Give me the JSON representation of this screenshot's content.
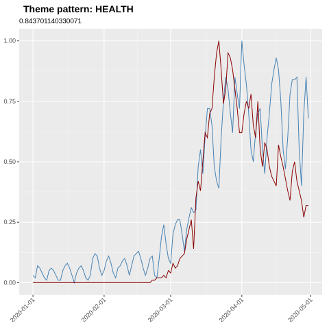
{
  "chart_data": {
    "type": "line",
    "title": "Theme pattern: HEALTH",
    "subtitle": "0.843701140330071",
    "x": [
      "2020-01-01",
      "2020-01-02",
      "2020-01-03",
      "2020-01-04",
      "2020-01-05",
      "2020-01-06",
      "2020-01-07",
      "2020-01-08",
      "2020-01-09",
      "2020-01-10",
      "2020-01-11",
      "2020-01-12",
      "2020-01-13",
      "2020-01-14",
      "2020-01-15",
      "2020-01-16",
      "2020-01-17",
      "2020-01-18",
      "2020-01-19",
      "2020-01-20",
      "2020-01-21",
      "2020-01-22",
      "2020-01-23",
      "2020-01-24",
      "2020-01-25",
      "2020-01-26",
      "2020-01-27",
      "2020-01-28",
      "2020-01-29",
      "2020-01-30",
      "2020-01-31",
      "2020-02-01",
      "2020-02-02",
      "2020-02-03",
      "2020-02-04",
      "2020-02-05",
      "2020-02-06",
      "2020-02-07",
      "2020-02-08",
      "2020-02-09",
      "2020-02-10",
      "2020-02-11",
      "2020-02-12",
      "2020-02-13",
      "2020-02-14",
      "2020-02-15",
      "2020-02-16",
      "2020-02-17",
      "2020-02-18",
      "2020-02-19",
      "2020-02-20",
      "2020-02-21",
      "2020-02-22",
      "2020-02-23",
      "2020-02-24",
      "2020-02-25",
      "2020-02-26",
      "2020-02-27",
      "2020-02-28",
      "2020-02-29",
      "2020-03-01",
      "2020-03-02",
      "2020-03-03",
      "2020-03-04",
      "2020-03-05",
      "2020-03-06",
      "2020-03-07",
      "2020-03-08",
      "2020-03-09",
      "2020-03-10",
      "2020-03-11",
      "2020-03-12",
      "2020-03-13",
      "2020-03-14",
      "2020-03-15",
      "2020-03-16",
      "2020-03-17",
      "2020-03-18",
      "2020-03-19",
      "2020-03-20",
      "2020-03-21",
      "2020-03-22",
      "2020-03-23",
      "2020-03-24",
      "2020-03-25",
      "2020-03-26",
      "2020-03-27",
      "2020-03-28",
      "2020-03-29",
      "2020-03-30",
      "2020-03-31",
      "2020-04-01",
      "2020-04-02",
      "2020-04-03",
      "2020-04-04",
      "2020-04-05",
      "2020-04-06",
      "2020-04-07",
      "2020-04-08",
      "2020-04-09",
      "2020-04-10",
      "2020-04-11",
      "2020-04-12",
      "2020-04-13",
      "2020-04-14",
      "2020-04-15",
      "2020-04-16",
      "2020-04-17",
      "2020-04-18",
      "2020-04-19",
      "2020-04-20",
      "2020-04-21",
      "2020-04-22",
      "2020-04-23",
      "2020-04-24",
      "2020-04-25",
      "2020-04-26",
      "2020-04-27",
      "2020-04-28",
      "2020-04-29",
      "2020-04-30"
    ],
    "series": [
      {
        "color": "#4682b4",
        "values": [
          0.03,
          0.02,
          0.07,
          0.06,
          0.04,
          0.02,
          0.01,
          0.05,
          0.06,
          0.05,
          0.03,
          0.01,
          0.01,
          0.05,
          0.07,
          0.08,
          0.06,
          0.03,
          0.0,
          0.04,
          0.06,
          0.07,
          0.05,
          0.02,
          0.01,
          0.03,
          0.1,
          0.12,
          0.11,
          0.06,
          0.03,
          0.05,
          0.09,
          0.11,
          0.08,
          0.04,
          0.02,
          0.06,
          0.07,
          0.09,
          0.1,
          0.07,
          0.03,
          0.07,
          0.11,
          0.12,
          0.13,
          0.1,
          0.06,
          0.03,
          0.06,
          0.1,
          0.11,
          0.03,
          0.02,
          0.1,
          0.19,
          0.24,
          0.16,
          0.1,
          0.08,
          0.2,
          0.24,
          0.26,
          0.26,
          0.2,
          0.13,
          0.22,
          0.27,
          0.31,
          0.29,
          0.3,
          0.48,
          0.55,
          0.45,
          0.6,
          0.72,
          0.72,
          0.65,
          0.48,
          0.42,
          0.39,
          0.6,
          0.75,
          0.85,
          0.8,
          0.7,
          0.62,
          0.85,
          0.78,
          0.72,
          1.0,
          0.9,
          0.82,
          0.7,
          0.55,
          0.5,
          0.62,
          0.7,
          0.72,
          0.55,
          0.45,
          0.6,
          0.7,
          0.82,
          0.88,
          0.93,
          0.88,
          0.75,
          0.55,
          0.47,
          0.6,
          0.78,
          0.84,
          0.84,
          0.85,
          0.55,
          0.4,
          0.7,
          0.85,
          0.68
        ]
      },
      {
        "color": "#8b0000",
        "values": [
          0,
          0,
          0,
          0,
          0,
          0,
          0,
          0,
          0,
          0,
          0,
          0,
          0,
          0,
          0,
          0,
          0,
          0,
          0,
          0,
          0,
          0,
          0,
          0,
          0,
          0,
          0,
          0,
          0,
          0,
          0,
          0,
          0,
          0,
          0,
          0,
          0,
          0,
          0,
          0,
          0,
          0,
          0,
          0,
          0,
          0,
          0,
          0,
          0,
          0,
          0,
          0,
          0.01,
          0.01,
          0.02,
          0.02,
          0.02,
          0.03,
          0.02,
          0.05,
          0.04,
          0.08,
          0.06,
          0.07,
          0.1,
          0.11,
          0.12,
          0.18,
          0.22,
          0.26,
          0.14,
          0.35,
          0.42,
          0.38,
          0.5,
          0.62,
          0.6,
          0.7,
          0.72,
          0.85,
          0.95,
          1.0,
          0.88,
          0.74,
          0.8,
          0.95,
          0.93,
          0.88,
          0.8,
          0.72,
          0.62,
          0.62,
          0.7,
          0.75,
          0.72,
          0.78,
          0.65,
          0.6,
          0.75,
          0.55,
          0.48,
          0.58,
          0.55,
          0.48,
          0.44,
          0.42,
          0.4,
          0.57,
          0.52,
          0.48,
          0.43,
          0.38,
          0.34,
          0.46,
          0.5,
          0.42,
          0.38,
          0.34,
          0.27,
          0.32,
          0.32
        ]
      }
    ],
    "xlim": [
      "2019-12-26",
      "2020-05-06"
    ],
    "xticks": [
      "2020-01-01",
      "2020-02-01",
      "2020-03-01",
      "2020-04-01",
      "2020-05-01"
    ],
    "ylim": [
      -0.05,
      1.05
    ],
    "yticks": [
      {
        "value": 0,
        "label": "0.00"
      },
      {
        "value": 0.25,
        "label": "0.25"
      },
      {
        "value": 0.5,
        "label": "0.50"
      },
      {
        "value": 0.75,
        "label": "0.75"
      },
      {
        "value": 1,
        "label": "1.00"
      }
    ],
    "grid": true
  }
}
